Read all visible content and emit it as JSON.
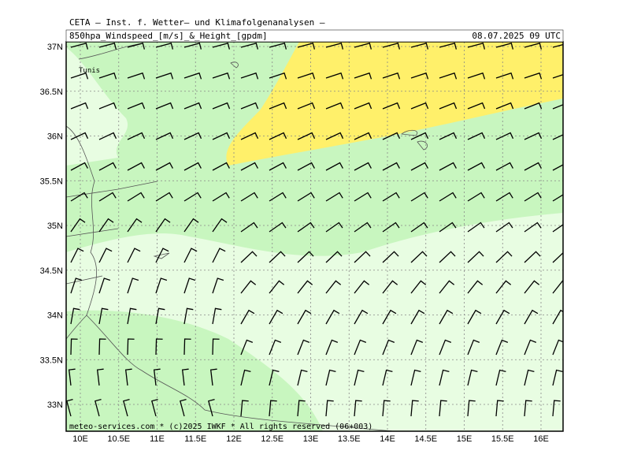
{
  "header": {
    "title": "CETA – Inst. f. Wetter– und Klimafolgenanalysen –",
    "variable": "850hpa_Windspeed_[m/s]_&_Height_[gpdm]",
    "time": "08.07.2025 09 UTC"
  },
  "footer": "meteo-services.com * (c)2025 IWKF * All rights reserved (06+003)",
  "map": {
    "place": "Tunis",
    "lat_labels": [
      "37N",
      "36.5N",
      "36N",
      "35.5N",
      "35N",
      "34.5N",
      "34N",
      "33.5N",
      "33N"
    ],
    "lon_labels": [
      "10E",
      "10.5E",
      "11E",
      "11.5E",
      "12E",
      "12.5E",
      "13E",
      "13.5E",
      "14E",
      "14.5E",
      "15E",
      "15.5E",
      "16E"
    ]
  }
}
